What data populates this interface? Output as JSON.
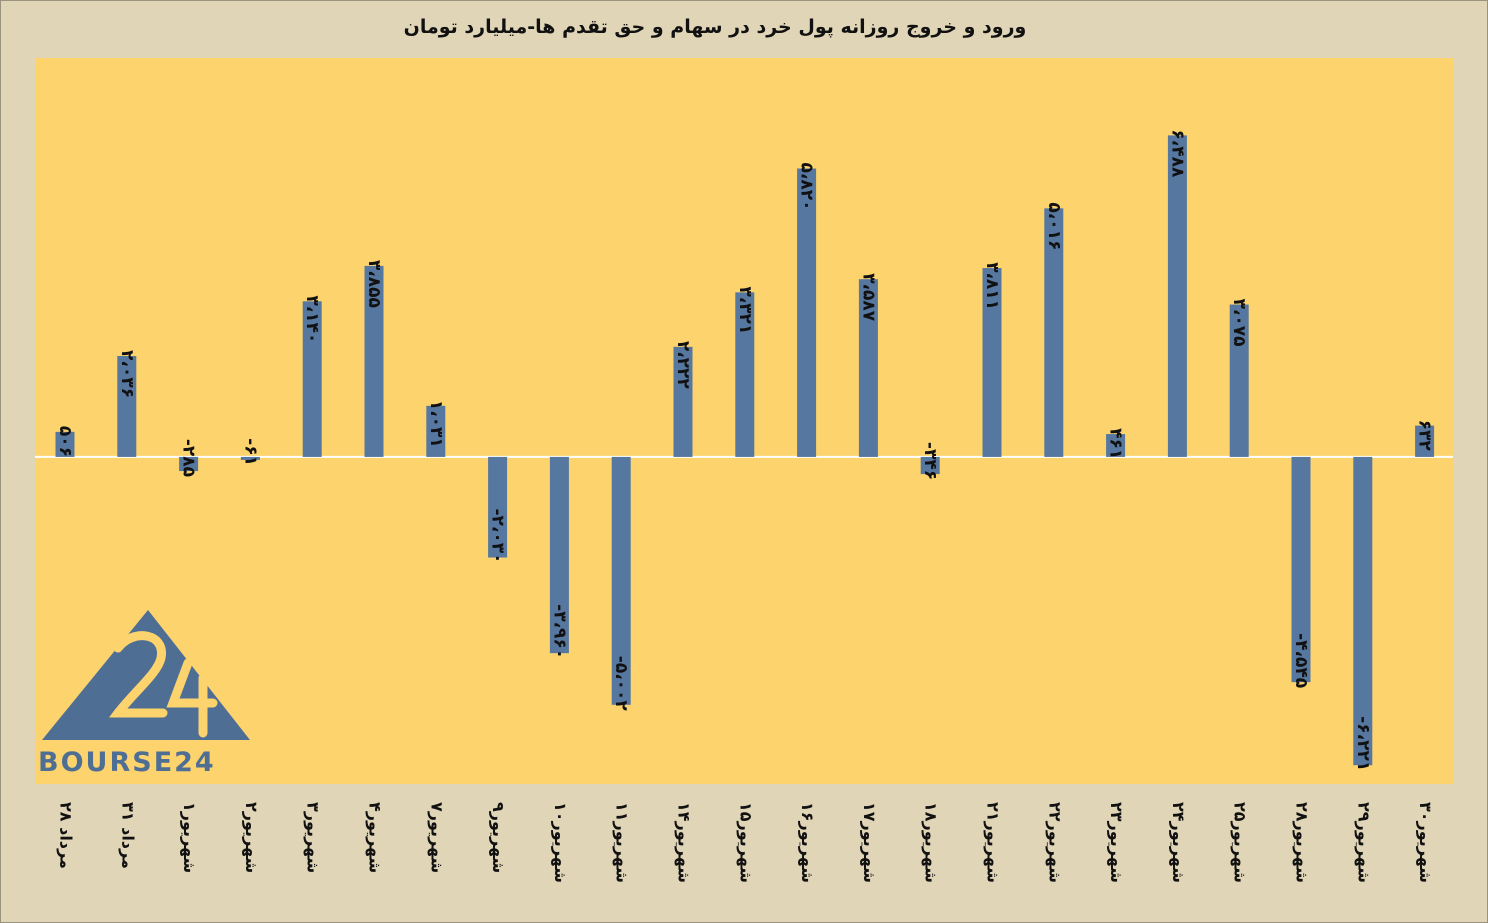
{
  "chart_data": {
    "type": "bar",
    "title": "ورود و خروج روزانه پول خرد در سهام و حق تقدم ها-میلیارد تومان",
    "categories": [
      "۲۸ مرداد",
      "۳۱ مرداد",
      "۱شهریور",
      "۲شهریور",
      "۳شهریور",
      "۴شهریور",
      "۷شهریور",
      "۹شهریور",
      "۱۰شهریور",
      "۱۱شهریور",
      "۱۴شهریور",
      "۱۵شهریور",
      "۱۶شهریور",
      "۱۷شهریور",
      "۱۸شهریور",
      "۲۱شهریور",
      "۲۲شهریور",
      "۲۳شهریور",
      "۲۴شهریور",
      "۲۵شهریور",
      "۲۸شهریور",
      "۲۹شهریور",
      "۳۰شهریور"
    ],
    "values": [
      506,
      2036,
      -285,
      -61,
      3140,
      3855,
      1031,
      -2030,
      -3960,
      -5002,
      2222,
      3321,
      5820,
      3587,
      -346,
      3811,
      5016,
      461,
      6488,
      3075,
      -4545,
      -6221,
      632
    ],
    "data_labels": [
      "۵۰۶",
      "۲،۰۳۶",
      "-۲۸۵",
      "-۶۱",
      "۳،۱۴۰",
      "۳،۸۵۵",
      "۱،۰۳۱",
      "-۲،۰۳۰",
      "-۳،۹۶۰",
      "-۵،۰۰۲",
      "۲،۲۲۲",
      "۳،۳۲۱",
      "۵،۸۲۰",
      "۳،۵۸۷",
      "-۳۴۶",
      "۳،۸۱۱",
      "۵،۰۱۶",
      "۴۶۱",
      "۶،۴۸۸",
      "۳،۰۷۵",
      "-۴،۵۴۵",
      "-۶،۲۲۱",
      "۶۳۲"
    ],
    "ylim": [
      -6600,
      8050
    ],
    "grid": false,
    "colors": {
      "bar": "#5677a0",
      "plot_background": "#fcd36d",
      "page_background": "#e0d5b6",
      "zero_line": "#ffffff"
    }
  },
  "logo": {
    "text": "BOURSE24",
    "mark": "24"
  }
}
